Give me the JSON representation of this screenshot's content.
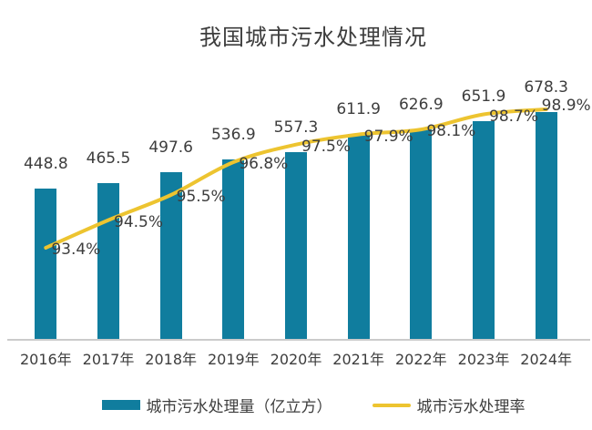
{
  "chart_data": {
    "type": "bar",
    "title": "我国城市污水处理情况",
    "categories": [
      "2016年",
      "2017年",
      "2018年",
      "2019年",
      "2020年",
      "2021年",
      "2022年",
      "2023年",
      "2024年"
    ],
    "series": [
      {
        "name": "城市污水处理量（亿立方）",
        "type": "bar",
        "color": "#107d9e",
        "values": [
          448.8,
          465.5,
          497.6,
          536.9,
          557.3,
          611.9,
          626.9,
          651.9,
          678.3
        ],
        "labels": [
          "448.8",
          "465.5",
          "497.6",
          "536.9",
          "557.3",
          "611.9",
          "626.9",
          "651.9",
          "678.3"
        ]
      },
      {
        "name": "城市污水处理率",
        "type": "line",
        "color": "#edc430",
        "values": [
          93.4,
          94.5,
          95.5,
          96.8,
          97.5,
          97.9,
          98.1,
          98.7,
          98.9
        ],
        "labels": [
          "93.4%",
          "94.5%",
          "95.5%",
          "96.8%",
          "97.5%",
          "97.9%",
          "98.1%",
          "98.7%",
          "98.9%"
        ]
      }
    ],
    "xlabel": "",
    "ylabel": "",
    "ylim_bar": [
      0,
      700
    ],
    "ylim_line": [
      92,
      100
    ],
    "grid": false,
    "legend_position": "bottom",
    "data_labels_visible": true
  },
  "colors": {
    "bar": "#107d9e",
    "line": "#edc430",
    "axis_line": "#cbcbcb",
    "text": "#3d3d3d",
    "background": "#ffffff"
  }
}
